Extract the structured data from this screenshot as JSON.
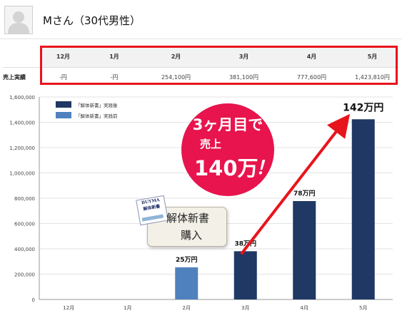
{
  "header": {
    "title": "Mさん（30代男性）"
  },
  "sales_table": {
    "row_label": "売上実績",
    "columns": [
      "12月",
      "1月",
      "2月",
      "3月",
      "4月",
      "5月"
    ],
    "values": [
      "-円",
      "-円",
      "254,100円",
      "381,100円",
      "777,600円",
      "1,423,810円"
    ]
  },
  "chart_data": {
    "type": "bar",
    "categories": [
      "12月",
      "1月",
      "2月",
      "3月",
      "4月",
      "5月"
    ],
    "series": [
      {
        "name": "「解体新書」実践後",
        "color": "#1f3864",
        "values": [
          null,
          null,
          null,
          381100,
          777600,
          1423810
        ]
      },
      {
        "name": "「解体新書」実践前",
        "color": "#4f81bd",
        "values": [
          0,
          0,
          254100,
          null,
          null,
          null
        ]
      }
    ],
    "ylim": [
      0,
      1600000
    ],
    "yticks": [
      0,
      200000,
      400000,
      600000,
      800000,
      1000000,
      1200000,
      1400000,
      1600000
    ],
    "ytick_labels": [
      "0",
      "200,000",
      "400,000",
      "600,000",
      "800,000",
      "1,000,000",
      "1,200,000",
      "1,400,000",
      "1,600,000"
    ],
    "legend_position": "top-left",
    "data_labels": [
      "",
      "",
      "25万円",
      "38万円",
      "78万円",
      "142万円"
    ]
  },
  "callout": {
    "line1": "3ヶ月目で",
    "line2": "売上",
    "line3": "140万",
    "excl": "！",
    "color": "#e8144d"
  },
  "sticker": {
    "book_title": "BUYMA",
    "book_sub": "解体新書",
    "line1": "解体新書",
    "line2": "購入"
  }
}
